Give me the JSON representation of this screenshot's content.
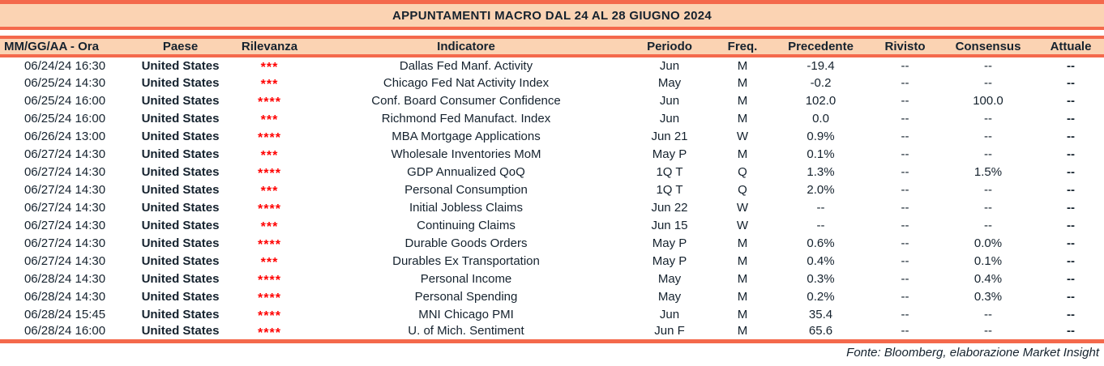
{
  "title": "APPUNTAMENTI MACRO DAL 24 AL 28 GIUGNO 2024",
  "footer": "Fonte: Bloomberg, elaborazione Market Insight",
  "colors": {
    "accent_coral": "#f4694c",
    "band_peach": "#fbd3b3",
    "text_navy": "#15222e",
    "star_red": "#ff0000"
  },
  "table": {
    "columns": [
      "MM/GG/AA - Ora",
      "Paese",
      "Rilevanza",
      "Indicatore",
      "Periodo",
      "Freq.",
      "Precedente",
      "Rivisto",
      "Consensus",
      "Attuale"
    ],
    "column_keys": [
      "datetime",
      "country",
      "relevance",
      "indicator",
      "period",
      "freq",
      "previous",
      "revised",
      "consensus",
      "actual"
    ],
    "rows": [
      [
        "06/24/24 16:30",
        "United States",
        "***",
        "Dallas Fed Manf. Activity",
        "Jun",
        "M",
        "-19.4",
        "--",
        "--",
        "--"
      ],
      [
        "06/25/24 14:30",
        "United States",
        "***",
        "Chicago Fed Nat Activity Index",
        "May",
        "M",
        "-0.2",
        "--",
        "--",
        "--"
      ],
      [
        "06/25/24 16:00",
        "United States",
        "****",
        "Conf. Board Consumer Confidence",
        "Jun",
        "M",
        "102.0",
        "--",
        "100.0",
        "--"
      ],
      [
        "06/25/24 16:00",
        "United States",
        "***",
        "Richmond Fed Manufact. Index",
        "Jun",
        "M",
        "0.0",
        "--",
        "--",
        "--"
      ],
      [
        "06/26/24 13:00",
        "United States",
        "****",
        "MBA Mortgage Applications",
        "Jun 21",
        "W",
        "0.9%",
        "--",
        "--",
        "--"
      ],
      [
        "06/27/24 14:30",
        "United States",
        "***",
        "Wholesale Inventories MoM",
        "May P",
        "M",
        "0.1%",
        "--",
        "--",
        "--"
      ],
      [
        "06/27/24 14:30",
        "United States",
        "****",
        "GDP Annualized QoQ",
        "1Q T",
        "Q",
        "1.3%",
        "--",
        "1.5%",
        "--"
      ],
      [
        "06/27/24 14:30",
        "United States",
        "***",
        "Personal Consumption",
        "1Q T",
        "Q",
        "2.0%",
        "--",
        "--",
        "--"
      ],
      [
        "06/27/24 14:30",
        "United States",
        "****",
        "Initial Jobless Claims",
        "Jun 22",
        "W",
        "--",
        "--",
        "--",
        "--"
      ],
      [
        "06/27/24 14:30",
        "United States",
        "***",
        "Continuing Claims",
        "Jun 15",
        "W",
        "--",
        "--",
        "--",
        "--"
      ],
      [
        "06/27/24 14:30",
        "United States",
        "****",
        "Durable Goods Orders",
        "May P",
        "M",
        "0.6%",
        "--",
        "0.0%",
        "--"
      ],
      [
        "06/27/24 14:30",
        "United States",
        "***",
        "Durables Ex Transportation",
        "May P",
        "M",
        "0.4%",
        "--",
        "0.1%",
        "--"
      ],
      [
        "06/28/24 14:30",
        "United States",
        "****",
        "Personal Income",
        "May",
        "M",
        "0.3%",
        "--",
        "0.4%",
        "--"
      ],
      [
        "06/28/24 14:30",
        "United States",
        "****",
        "Personal Spending",
        "May",
        "M",
        "0.2%",
        "--",
        "0.3%",
        "--"
      ],
      [
        "06/28/24 15:45",
        "United States",
        "****",
        "MNI Chicago PMI",
        "Jun",
        "M",
        "35.4",
        "--",
        "--",
        "--"
      ],
      [
        "06/28/24 16:00",
        "United States",
        "****",
        "U. of Mich. Sentiment",
        "Jun F",
        "M",
        "65.6",
        "--",
        "--",
        "--"
      ]
    ]
  }
}
